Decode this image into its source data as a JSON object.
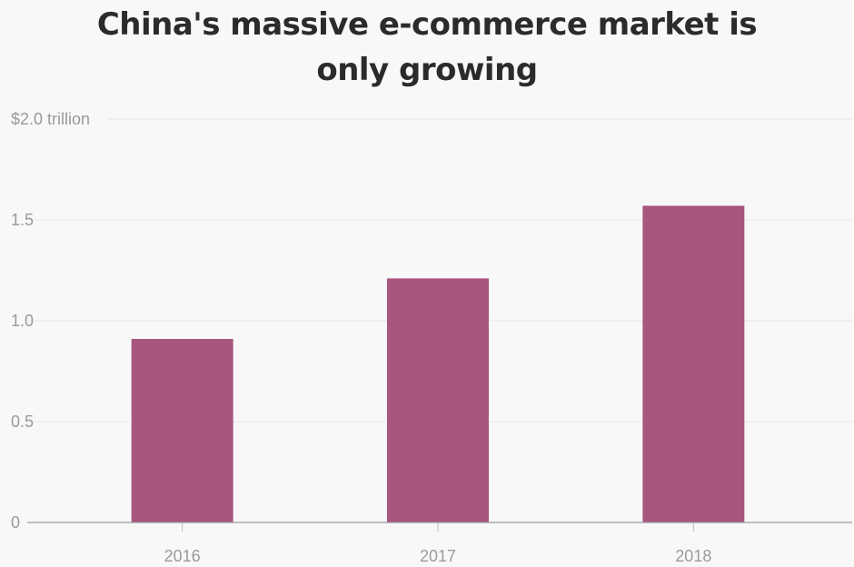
{
  "chart_data": {
    "type": "bar",
    "title": "China's massive e-commerce market is only growing",
    "title_lines": [
      "China's massive e-commerce market is",
      "only growing"
    ],
    "categories": [
      "2016",
      "2017",
      "2018"
    ],
    "values": [
      0.91,
      1.21,
      1.57
    ],
    "unit_label": "$2.0 trillion",
    "y_ticks": [
      {
        "value": 0,
        "label": "0"
      },
      {
        "value": 0.5,
        "label": "0.5"
      },
      {
        "value": 1.0,
        "label": "1.0"
      },
      {
        "value": 1.5,
        "label": "1.5"
      },
      {
        "value": 2.0,
        "label": "$2.0 trillion"
      }
    ],
    "xlabel": "",
    "ylabel": "",
    "ylim": [
      0,
      2.0
    ],
    "grid": true,
    "legend": "none",
    "bar_color": "#a8557f"
  }
}
